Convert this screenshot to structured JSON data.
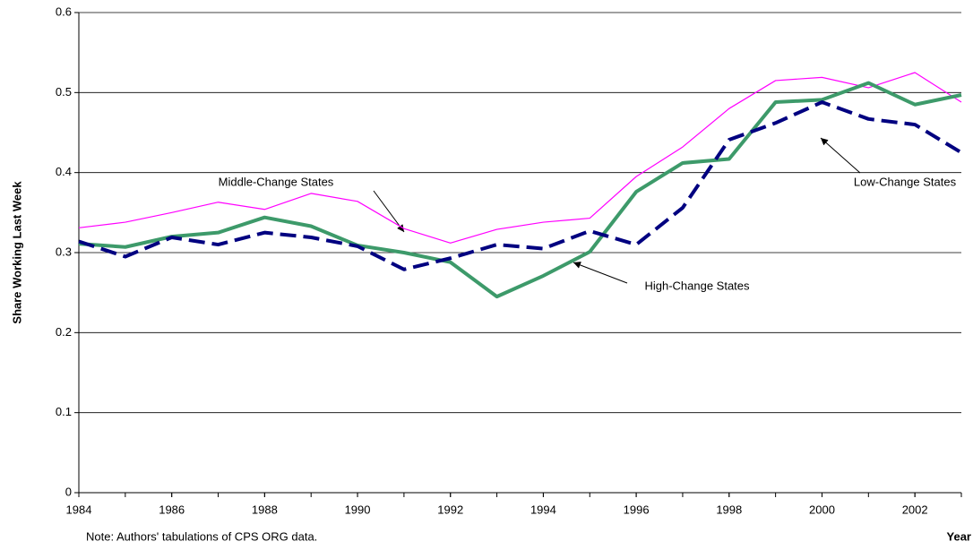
{
  "chart_data": {
    "type": "line",
    "x": [
      1984,
      1985,
      1986,
      1987,
      1988,
      1989,
      1990,
      1991,
      1992,
      1993,
      1994,
      1995,
      1996,
      1997,
      1998,
      1999,
      2000,
      2001,
      2002,
      2003
    ],
    "xlim": [
      1984,
      2003
    ],
    "xticks": [
      1984,
      1986,
      1988,
      1990,
      1992,
      1994,
      1996,
      1998,
      2000,
      2002
    ],
    "ylim": [
      0,
      0.6
    ],
    "yticks": [
      0,
      0.1,
      0.2,
      0.3,
      0.4,
      0.5,
      0.6
    ],
    "grid": true,
    "y_label": "Share Working Last Week",
    "x_label": "Year",
    "note": "Note: Authors' tabulations of CPS ORG data.",
    "series": [
      {
        "name": "Middle-Change States",
        "color": "#ff00ff",
        "width": 1.2,
        "dashed": false,
        "values": [
          0.331,
          0.338,
          0.35,
          0.363,
          0.354,
          0.374,
          0.364,
          0.33,
          0.312,
          0.329,
          0.338,
          0.343,
          0.395,
          0.432,
          0.48,
          0.515,
          0.519,
          0.506,
          0.525,
          0.488
        ]
      },
      {
        "name": "High-Change States",
        "color": "#3d9a6a",
        "width": 4,
        "dashed": false,
        "values": [
          0.311,
          0.307,
          0.32,
          0.325,
          0.344,
          0.333,
          0.309,
          0.3,
          0.288,
          0.245,
          0.271,
          0.301,
          0.376,
          0.412,
          0.417,
          0.488,
          0.491,
          0.512,
          0.485,
          0.497
        ]
      },
      {
        "name": "Low-Change States",
        "color": "#000080",
        "width": 4,
        "dashed": true,
        "values": [
          0.314,
          0.295,
          0.319,
          0.31,
          0.325,
          0.319,
          0.308,
          0.279,
          0.293,
          0.31,
          0.305,
          0.327,
          0.31,
          0.356,
          0.441,
          0.462,
          0.488,
          0.467,
          0.46,
          0.425
        ]
      }
    ]
  }
}
